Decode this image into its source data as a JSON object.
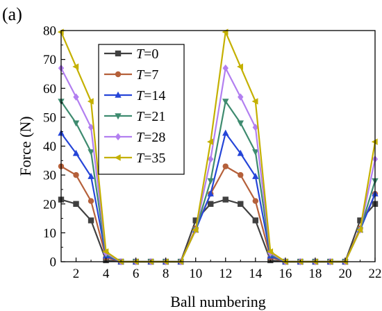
{
  "panel_label": "(a)",
  "chart_data": {
    "type": "line",
    "xlabel": "Ball numbering",
    "ylabel": "Force (N)",
    "xlim": [
      1,
      22
    ],
    "ylim": [
      0,
      80
    ],
    "xticks": [
      2,
      4,
      6,
      8,
      10,
      12,
      14,
      16,
      18,
      20,
      22
    ],
    "yticks": [
      0,
      10,
      20,
      30,
      40,
      50,
      60,
      70,
      80
    ],
    "grid": false,
    "legend_position": "top-left",
    "x": [
      1,
      2,
      3,
      4,
      5,
      6,
      7,
      8,
      9,
      10,
      11,
      12,
      13,
      14,
      15,
      16,
      17,
      18,
      19,
      20,
      21,
      22
    ],
    "series": [
      {
        "name_prefix": "T",
        "name_value": "=0",
        "marker": "square",
        "color": "#404040",
        "values": [
          21.5,
          20,
          14.3,
          0.5,
          0,
          0,
          0,
          0,
          0,
          14.3,
          20,
          21.5,
          20,
          14.3,
          0.5,
          0,
          0,
          0,
          0,
          0,
          14.3,
          20
        ]
      },
      {
        "name_prefix": "T",
        "name_value": "=7",
        "marker": "circle",
        "color": "#b5603a",
        "values": [
          33,
          30,
          21,
          1.5,
          0,
          0,
          0,
          0,
          0,
          11.5,
          23.5,
          33,
          30,
          21,
          1.5,
          0,
          0,
          0,
          0,
          0,
          11.5,
          23.5
        ]
      },
      {
        "name_prefix": "T",
        "name_value": "=14",
        "marker": "triangle-up",
        "color": "#2545d8",
        "values": [
          44.5,
          37.5,
          29.5,
          2,
          0,
          0,
          0,
          0,
          0,
          11,
          23.5,
          44.5,
          37.5,
          29.5,
          2,
          0,
          0,
          0,
          0,
          0,
          11,
          23.5
        ]
      },
      {
        "name_prefix": "T",
        "name_value": "=21",
        "marker": "triangle-down",
        "color": "#3e8b6f",
        "values": [
          55.5,
          48,
          38,
          2.5,
          0,
          0,
          0,
          0,
          0,
          11,
          28,
          55.5,
          48,
          38,
          2.5,
          0,
          0,
          0,
          0,
          0,
          11,
          28
        ]
      },
      {
        "name_prefix": "T",
        "name_value": "=28",
        "marker": "diamond",
        "color": "#b27ff0",
        "values": [
          67,
          57,
          46.5,
          3,
          0,
          0,
          0,
          0,
          0,
          11,
          35.5,
          67,
          57,
          46.5,
          3,
          0,
          0,
          0,
          0,
          0,
          11,
          35.5
        ]
      },
      {
        "name_prefix": "T",
        "name_value": "=35",
        "marker": "triangle-left",
        "color": "#c4b000",
        "values": [
          79.5,
          67.5,
          55.5,
          3.5,
          0,
          0,
          0,
          0,
          0,
          11,
          41.5,
          79.5,
          67.5,
          55.5,
          3.5,
          0,
          0,
          0,
          0,
          0,
          11,
          41.5
        ]
      }
    ]
  }
}
